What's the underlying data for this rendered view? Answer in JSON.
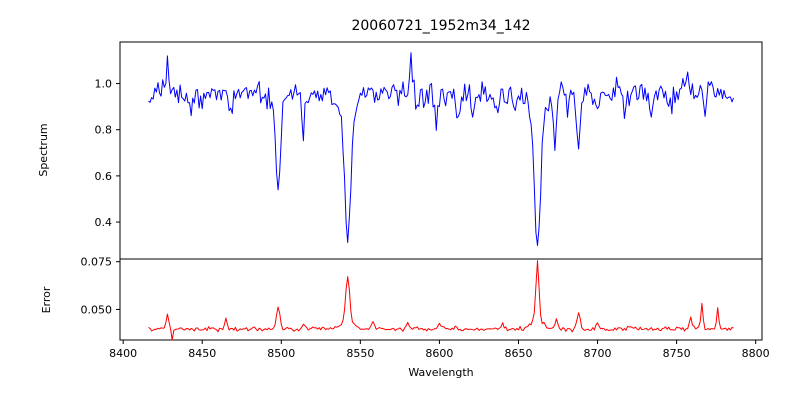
{
  "figure": {
    "background": "#ffffff",
    "axis_color": "#000000"
  },
  "chart_data": {
    "type": "line",
    "title": "20060721_1952m34_142",
    "xlabel": "Wavelength",
    "xlim": [
      8398,
      8804
    ],
    "xticks": [
      8400,
      8450,
      8500,
      8550,
      8600,
      8650,
      8700,
      8750,
      8800
    ],
    "x_start": 8416,
    "x_end": 8786,
    "x_step": 1,
    "grid": false,
    "legend": "none",
    "panels": [
      {
        "name": "spectrum",
        "ylabel": "Spectrum",
        "ylim": [
          0.24,
          1.18
        ],
        "ytick_values": [
          0.4,
          0.6,
          0.8,
          1.0
        ],
        "ytick_labels": [
          "0.4",
          "0.6",
          "0.8",
          "1.0"
        ],
        "color": "#0000ff",
        "continuum": 0.958,
        "noise_sigma": 0.028,
        "seed": 20060721,
        "absorption_lines": [
          [
            8443,
            0.08,
            0.9
          ],
          [
            8468,
            0.08,
            0.9
          ],
          [
            8498,
            0.36,
            1.4
          ],
          [
            8498,
            0.06,
            4
          ],
          [
            8514,
            0.15,
            1.0
          ],
          [
            8542,
            0.52,
            1.8
          ],
          [
            8542,
            0.12,
            5
          ],
          [
            8586,
            0.09,
            0.9
          ],
          [
            8598,
            0.12,
            1.0
          ],
          [
            8612,
            0.12,
            0.9
          ],
          [
            8621,
            0.09,
            0.9
          ],
          [
            8637,
            0.09,
            0.9
          ],
          [
            8648,
            0.11,
            0.9
          ],
          [
            8662,
            0.55,
            1.8
          ],
          [
            8662,
            0.12,
            5
          ],
          [
            8673,
            0.23,
            0.9
          ],
          [
            8681,
            0.09,
            0.8
          ],
          [
            8688,
            0.22,
            1.0
          ],
          [
            8700,
            0.11,
            0.9
          ],
          [
            8717,
            0.09,
            0.8
          ],
          [
            8734,
            0.1,
            0.9
          ],
          [
            8747,
            0.07,
            0.8
          ],
          [
            8768,
            0.08,
            0.8
          ]
        ],
        "emission_lines": [
          [
            8428,
            0.17,
            0.8
          ],
          [
            8582,
            0.09,
            0.7
          ],
          [
            8757,
            0.1,
            0.7
          ]
        ]
      },
      {
        "name": "error",
        "ylabel": "Error",
        "ylim": [
          0.034,
          0.0764
        ],
        "ytick_values": [
          0.05,
          0.075
        ],
        "ytick_labels": [
          "0.050",
          "0.075"
        ],
        "color": "#ff0000",
        "baseline": 0.0398,
        "noise_sigma": 0.0006,
        "seed": 1952,
        "peaks": [
          [
            8428,
            0.0075,
            0.8
          ],
          [
            8431,
            -0.0045,
            0.5
          ],
          [
            8465,
            0.005,
            0.8
          ],
          [
            8498,
            0.0125,
            1.0
          ],
          [
            8514,
            0.003,
            0.8
          ],
          [
            8542,
            0.024,
            1.2
          ],
          [
            8542,
            0.004,
            4
          ],
          [
            8558,
            0.0045,
            0.8
          ],
          [
            8580,
            0.003,
            0.8
          ],
          [
            8600,
            0.0035,
            0.8
          ],
          [
            8640,
            0.002,
            0.8
          ],
          [
            8662,
            0.03,
            1.0
          ],
          [
            8662,
            0.0045,
            4
          ],
          [
            8674,
            0.0055,
            0.8
          ],
          [
            8688,
            0.0075,
            1.0
          ],
          [
            8700,
            0.003,
            0.8
          ],
          [
            8720,
            0.002,
            0.7
          ],
          [
            8759,
            0.0065,
            0.7
          ],
          [
            8766,
            0.0125,
            0.7
          ],
          [
            8776,
            0.011,
            0.7
          ]
        ]
      }
    ]
  }
}
